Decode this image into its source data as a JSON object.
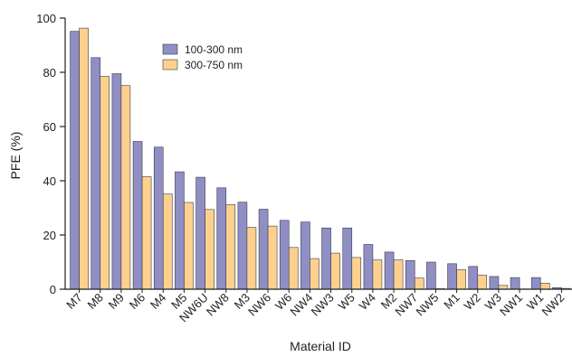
{
  "chart_data": {
    "type": "bar",
    "title": "",
    "xlabel": "Material ID",
    "ylabel": "PFE (%)",
    "ylim": [
      0,
      100
    ],
    "yticks": [
      0,
      20,
      40,
      60,
      80,
      100
    ],
    "grid": false,
    "legend_position": "top-center",
    "categories": [
      "M7",
      "M8",
      "M9",
      "M6",
      "M4",
      "M5",
      "NW6U",
      "NW8",
      "M3",
      "NW6",
      "W6",
      "NW4",
      "NW3",
      "W5",
      "W4",
      "M2",
      "NW7",
      "NW5",
      "M1",
      "W2",
      "W3",
      "NW1",
      "W1",
      "NW2"
    ],
    "series": [
      {
        "name": "100-300 nm",
        "color": "#8f8fc4",
        "values": [
          95.1,
          85.4,
          79.5,
          54.5,
          52.4,
          43.3,
          41.3,
          37.4,
          32.1,
          29.5,
          25.4,
          24.8,
          22.6,
          22.6,
          16.5,
          13.7,
          10.6,
          10.0,
          9.4,
          8.4,
          4.7,
          4.3,
          4.3,
          0.6
        ]
      },
      {
        "name": "300-750 nm",
        "color": "#fdd08e",
        "values": [
          96.3,
          78.5,
          75.1,
          41.5,
          35.1,
          32.0,
          29.4,
          31.2,
          22.8,
          23.3,
          15.4,
          11.3,
          13.3,
          11.7,
          10.8,
          10.8,
          4.1,
          0.2,
          7.2,
          5.2,
          1.4,
          0.1,
          2.2,
          0.3
        ]
      }
    ]
  }
}
